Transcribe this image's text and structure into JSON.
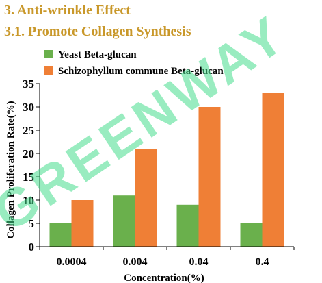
{
  "headings": {
    "section": "3. Anti-wrinkle Effect",
    "subsection": "3.1. Promote Collagen Synthesis"
  },
  "watermark": "GREENWAY",
  "chart_data": {
    "type": "bar",
    "categories": [
      "0.0004",
      "0.004",
      "0.04",
      "0.4"
    ],
    "series": [
      {
        "name": "Yeast Beta-glucan",
        "values": [
          5,
          11,
          9,
          5
        ],
        "color": "#6ab04c"
      },
      {
        "name": "Schizophyllum commune Beta-glucan",
        "values": [
          10,
          21,
          30,
          33
        ],
        "color": "#ef7f36"
      }
    ],
    "xlabel": "Concentration(%)",
    "ylabel": "Collagen Proliferation Rate(%)",
    "ylim": [
      0,
      35
    ],
    "yticks": [
      0,
      5,
      10,
      15,
      20,
      25,
      30,
      35
    ],
    "grid": false,
    "legend": "top"
  }
}
